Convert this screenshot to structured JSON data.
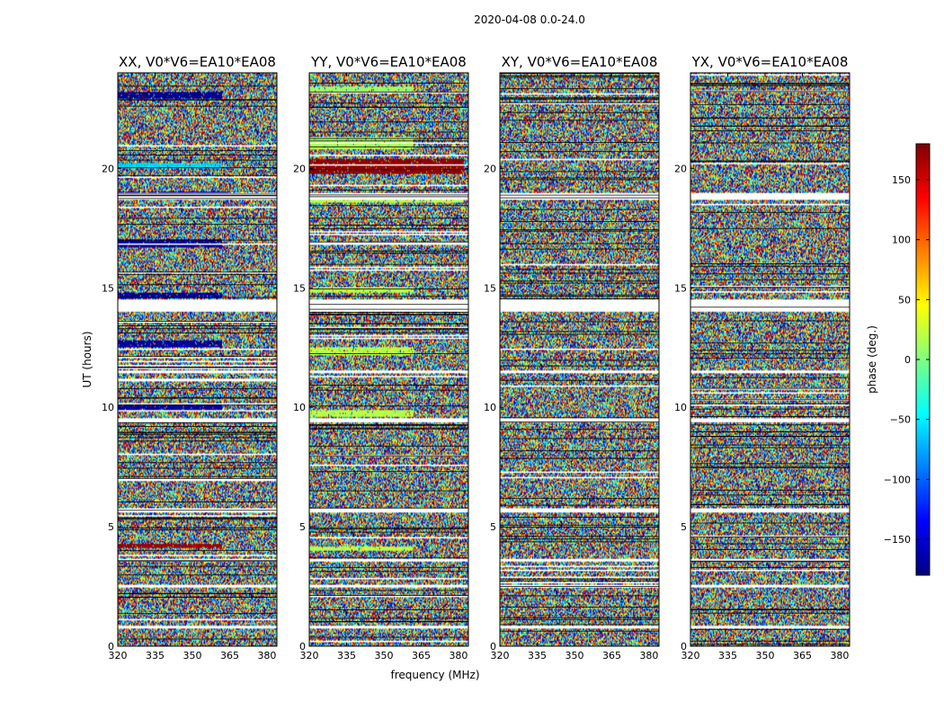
{
  "suptitle": "2020-04-08 0.0-24.0",
  "chart_data": {
    "type": "heatmap",
    "description_kind": "dynamic spectrum of visibility phase per polarization",
    "xlabel": "frequency (MHz)",
    "ylabel": "UT (hours)",
    "xlim": [
      320,
      384
    ],
    "ylim": [
      0,
      24
    ],
    "xticks": [
      320,
      335,
      350,
      365,
      380
    ],
    "yticks": [
      0,
      5,
      10,
      15,
      20
    ],
    "panels": [
      {
        "title": "XX, V0*V6=EA10*EA08",
        "pol": "XX"
      },
      {
        "title": "YY, V0*V6=EA10*EA08",
        "pol": "YY"
      },
      {
        "title": "XY, V0*V6=EA10*EA08",
        "pol": "XY"
      },
      {
        "title": "YX, V0*V6=EA10*EA08",
        "pol": "YX"
      }
    ],
    "colorbar": {
      "label": "phase (deg.)",
      "range": [
        -180,
        180
      ],
      "ticks": [
        -150,
        -100,
        -50,
        0,
        50,
        100,
        150
      ],
      "tick_labels": [
        "−150",
        "−100",
        "−50",
        "0",
        "50",
        "100",
        "150"
      ],
      "colormap": "jet",
      "colors": [
        "#00007f",
        "#0000ff",
        "#007fff",
        "#00ffff",
        "#7fff7f",
        "#ffff00",
        "#ff7f00",
        "#ff0000",
        "#7f0000"
      ]
    },
    "flagged_time_ranges_hours": [
      [
        0.75,
        0.85
      ],
      [
        2.45,
        2.55
      ],
      [
        3.55,
        3.65
      ],
      [
        5.6,
        5.75
      ],
      [
        9.35,
        9.55
      ],
      [
        11.45,
        11.55
      ],
      [
        14.0,
        14.5
      ],
      [
        18.7,
        18.95
      ]
    ],
    "coherent_regions": [
      {
        "pol": "XX",
        "t": [
          20.0,
          20.2
        ],
        "f": [
          320,
          362
        ],
        "phase": -60
      },
      {
        "pol": "XX",
        "t": [
          18.9,
          19.05
        ],
        "f": [
          320,
          364
        ],
        "phase": -170
      },
      {
        "pol": "XX",
        "t": [
          16.7,
          17.0
        ],
        "f": [
          320,
          362
        ],
        "phase": -170
      },
      {
        "pol": "XX",
        "t": [
          14.6,
          14.8
        ],
        "f": [
          320,
          362
        ],
        "phase": -170
      },
      {
        "pol": "XX",
        "t": [
          12.5,
          12.8
        ],
        "f": [
          320,
          362
        ],
        "phase": -170
      },
      {
        "pol": "XX",
        "t": [
          9.9,
          10.1
        ],
        "f": [
          320,
          362
        ],
        "phase": -170
      },
      {
        "pol": "XX",
        "t": [
          4.1,
          4.3
        ],
        "f": [
          320,
          362
        ],
        "phase": 170
      },
      {
        "pol": "XX",
        "t": [
          22.9,
          23.2
        ],
        "f": [
          320,
          362
        ],
        "phase": -175
      },
      {
        "pol": "YY",
        "t": [
          19.8,
          20.4
        ],
        "f": [
          320,
          382
        ],
        "phase": 175
      },
      {
        "pol": "YY",
        "t": [
          20.8,
          21.3
        ],
        "f": [
          320,
          362
        ],
        "phase": 15
      },
      {
        "pol": "YY",
        "t": [
          18.6,
          18.9
        ],
        "f": [
          320,
          382
        ],
        "phase": 20
      },
      {
        "pol": "YY",
        "t": [
          14.8,
          15.05
        ],
        "f": [
          320,
          362
        ],
        "phase": 20
      },
      {
        "pol": "YY",
        "t": [
          12.2,
          12.5
        ],
        "f": [
          320,
          362
        ],
        "phase": 20
      },
      {
        "pol": "YY",
        "t": [
          9.6,
          9.9
        ],
        "f": [
          320,
          362
        ],
        "phase": 20
      },
      {
        "pol": "YY",
        "t": [
          4.0,
          4.2
        ],
        "f": [
          320,
          362
        ],
        "phase": 20
      },
      {
        "pol": "YY",
        "t": [
          23.2,
          23.4
        ],
        "f": [
          320,
          362
        ],
        "phase": 10
      }
    ]
  }
}
